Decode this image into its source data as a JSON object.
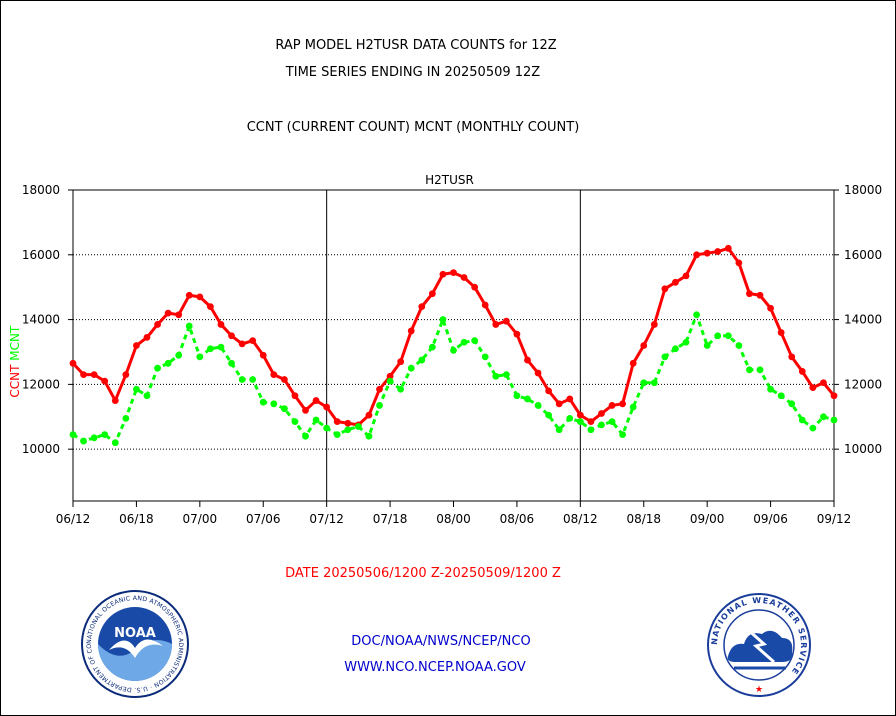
{
  "header": {
    "title_line1": "RAP MODEL H2TUSR DATA COUNTS for 12Z",
    "title_line2": "TIME SERIES ENDING IN 20250509 12Z",
    "subtitle": "CCNT (CURRENT COUNT) MCNT (MONTHLY COUNT)"
  },
  "footer": {
    "date_range": "DATE 20250506/1200 Z-20250509/1200 Z",
    "org_line": "DOC/NOAA/NWS/NCEP/NCO",
    "url_line": "WWW.NCO.NCEP.NOAA.GOV"
  },
  "logos": {
    "left_text": "NOAA",
    "left_ring_text": "NATIONAL OCEANIC AND ATMOSPHERIC ADMINISTRATION · U.S. DEPARTMENT OF COMMERCE",
    "right_ring_text": "NATIONAL WEATHER SERVICE"
  },
  "colors": {
    "ccnt": "#ff0000",
    "mcnt": "#00ff00",
    "plot_title": "#0000cc",
    "footer_red": "#ff0000",
    "footer_blue": "#0000cc"
  },
  "chart_data": {
    "type": "line",
    "plot_title": "H2TUSR",
    "ylabel_left_1": "CCNT",
    "ylabel_left_2": "MCNT",
    "ylim": [
      8400,
      18000
    ],
    "yticks": [
      10000,
      12000,
      14000,
      16000,
      18000
    ],
    "ytick_labels": [
      "10000",
      "12000",
      "14000",
      "16000",
      "18000"
    ],
    "xlim": [
      0,
      72
    ],
    "xticks": [
      0,
      6,
      12,
      18,
      24,
      30,
      36,
      42,
      48,
      54,
      60,
      66,
      72
    ],
    "xtick_labels": [
      "06/12",
      "06/18",
      "07/00",
      "07/06",
      "07/12",
      "07/18",
      "08/00",
      "08/06",
      "08/12",
      "08/18",
      "09/00",
      "09/06",
      "09/12"
    ],
    "grid": "horizontal dotted lines at y ticks; vertical solid lines at 07/12 and 08/12",
    "series": [
      {
        "name": "CCNT",
        "x": [
          0,
          1,
          2,
          3,
          4,
          5,
          6,
          7,
          8,
          9,
          10,
          11,
          12,
          13,
          14,
          15,
          16,
          17,
          18,
          19,
          20,
          21,
          22,
          23,
          24,
          25,
          26,
          27,
          28,
          29,
          30,
          31,
          32,
          33,
          34,
          35,
          36,
          37,
          38,
          39,
          40,
          41,
          42,
          43,
          44,
          45,
          46,
          47,
          48,
          49,
          50,
          51,
          52,
          53,
          54,
          55,
          56,
          57,
          58,
          59,
          60,
          61,
          62,
          63,
          64,
          65,
          66,
          67,
          68,
          69,
          70,
          71,
          72
        ],
        "values": [
          12650,
          12300,
          12300,
          12100,
          11500,
          12300,
          13200,
          13450,
          13850,
          14200,
          14150,
          14750,
          14700,
          14400,
          13850,
          13500,
          13250,
          13350,
          12900,
          12300,
          12150,
          11650,
          11200,
          11500,
          11300,
          10850,
          10800,
          10750,
          11050,
          11850,
          12250,
          12700,
          13650,
          14400,
          14800,
          15400,
          15450,
          15300,
          15000,
          14450,
          13850,
          13950,
          13550,
          12750,
          12350,
          11800,
          11400,
          11550,
          11050,
          10850,
          11100,
          11350,
          11400,
          12650,
          13200,
          13850,
          14950,
          15150,
          15350,
          16000,
          16050,
          16100,
          16200,
          15750,
          14800,
          14750,
          14350,
          13600,
          12850,
          12400,
          11900,
          12050,
          11650
        ]
      },
      {
        "name": "MCNT",
        "x": [
          0,
          1,
          2,
          3,
          4,
          5,
          6,
          7,
          8,
          9,
          10,
          11,
          12,
          13,
          14,
          15,
          16,
          17,
          18,
          19,
          20,
          21,
          22,
          23,
          24,
          25,
          26,
          27,
          28,
          29,
          30,
          31,
          32,
          33,
          34,
          35,
          36,
          37,
          38,
          39,
          40,
          41,
          42,
          43,
          44,
          45,
          46,
          47,
          48,
          49,
          50,
          51,
          52,
          53,
          54,
          55,
          56,
          57,
          58,
          59,
          60,
          61,
          62,
          63,
          64,
          65,
          66,
          67,
          68,
          69,
          70,
          71,
          72
        ],
        "values": [
          10450,
          10250,
          10350,
          10450,
          10200,
          10950,
          11850,
          11650,
          12500,
          12650,
          12900,
          13800,
          12850,
          13100,
          13150,
          12650,
          12150,
          12150,
          11450,
          11400,
          11250,
          10850,
          10400,
          10900,
          10650,
          10450,
          10600,
          10700,
          10400,
          11350,
          12100,
          11850,
          12500,
          12750,
          13150,
          14000,
          13050,
          13300,
          13350,
          12850,
          12250,
          12300,
          11650,
          11550,
          11350,
          11050,
          10600,
          10950,
          10850,
          10600,
          10750,
          10850,
          10450,
          11300,
          12050,
          12050,
          12850,
          13100,
          13300,
          14150,
          13200,
          13500,
          13500,
          13200,
          12450,
          12450,
          11850,
          11650,
          11400,
          10900,
          10650,
          11000,
          10900
        ]
      }
    ]
  }
}
